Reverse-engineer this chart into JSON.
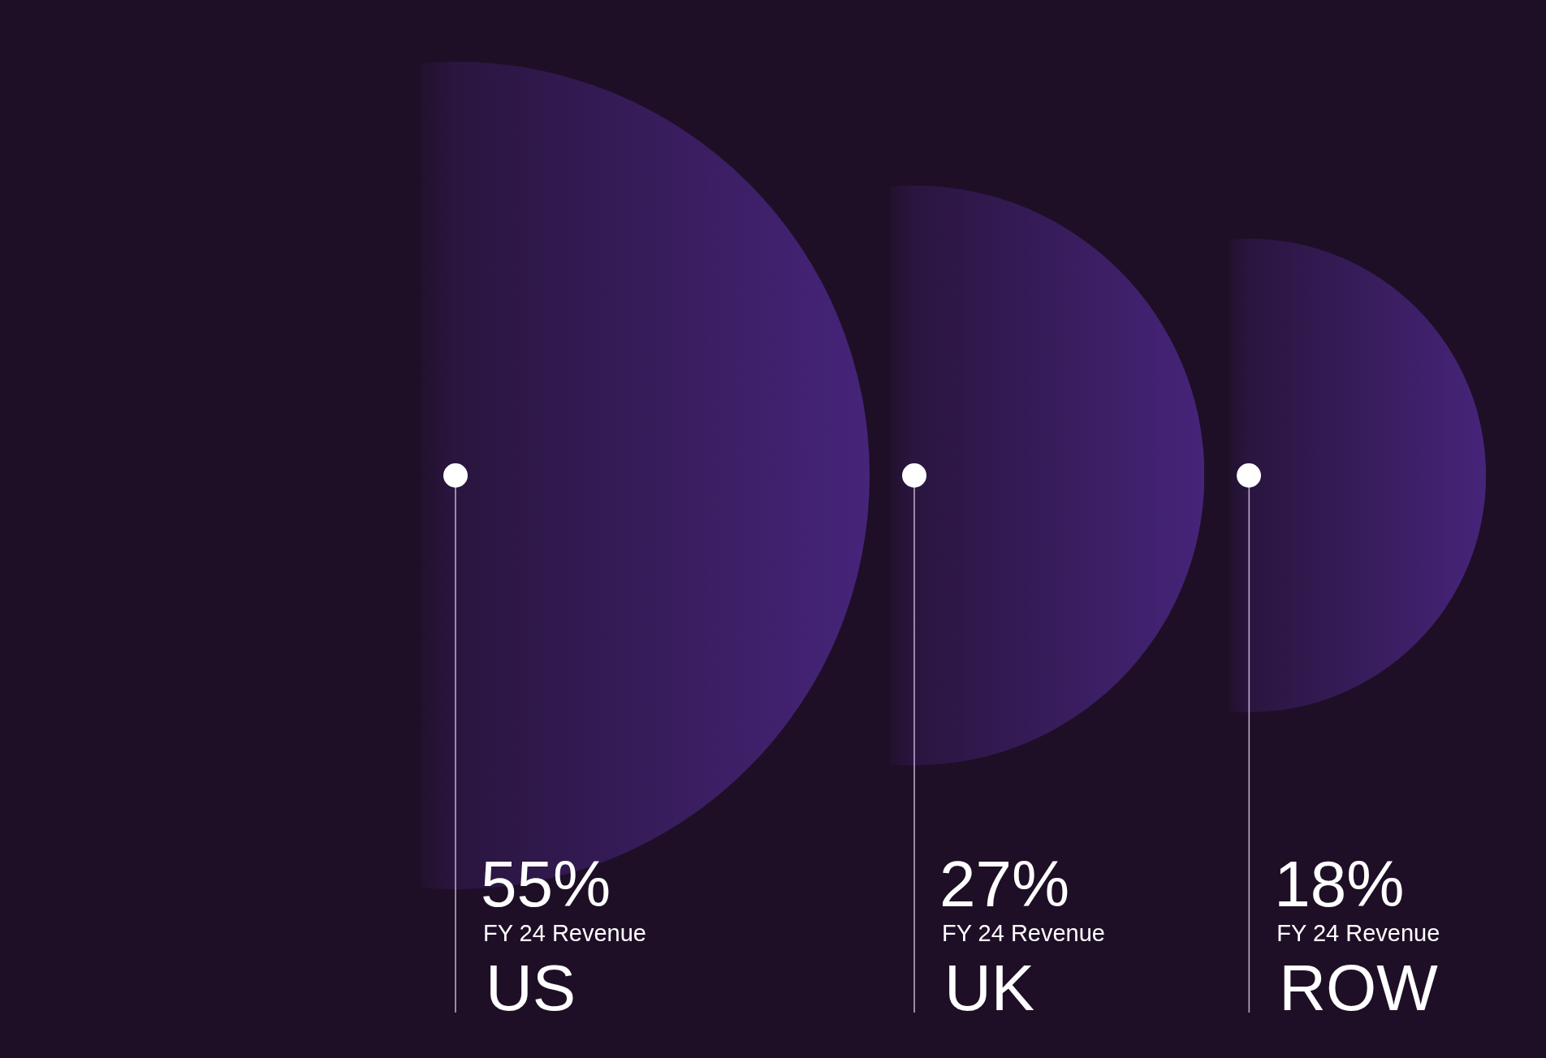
{
  "chart_data": {
    "type": "other",
    "categories": [
      "US",
      "UK",
      "ROW"
    ],
    "values": [
      55,
      27,
      18
    ],
    "value_labels": [
      "55%",
      "27%",
      "18%"
    ],
    "color": "#46247a",
    "annotations": [
      {
        "text": "FY 24 Revenue",
        "x": "US"
      },
      {
        "text": "FY 24 Revenue",
        "x": "UK"
      },
      {
        "text": "FY 24 Revenue",
        "x": "ROW"
      }
    ]
  }
}
